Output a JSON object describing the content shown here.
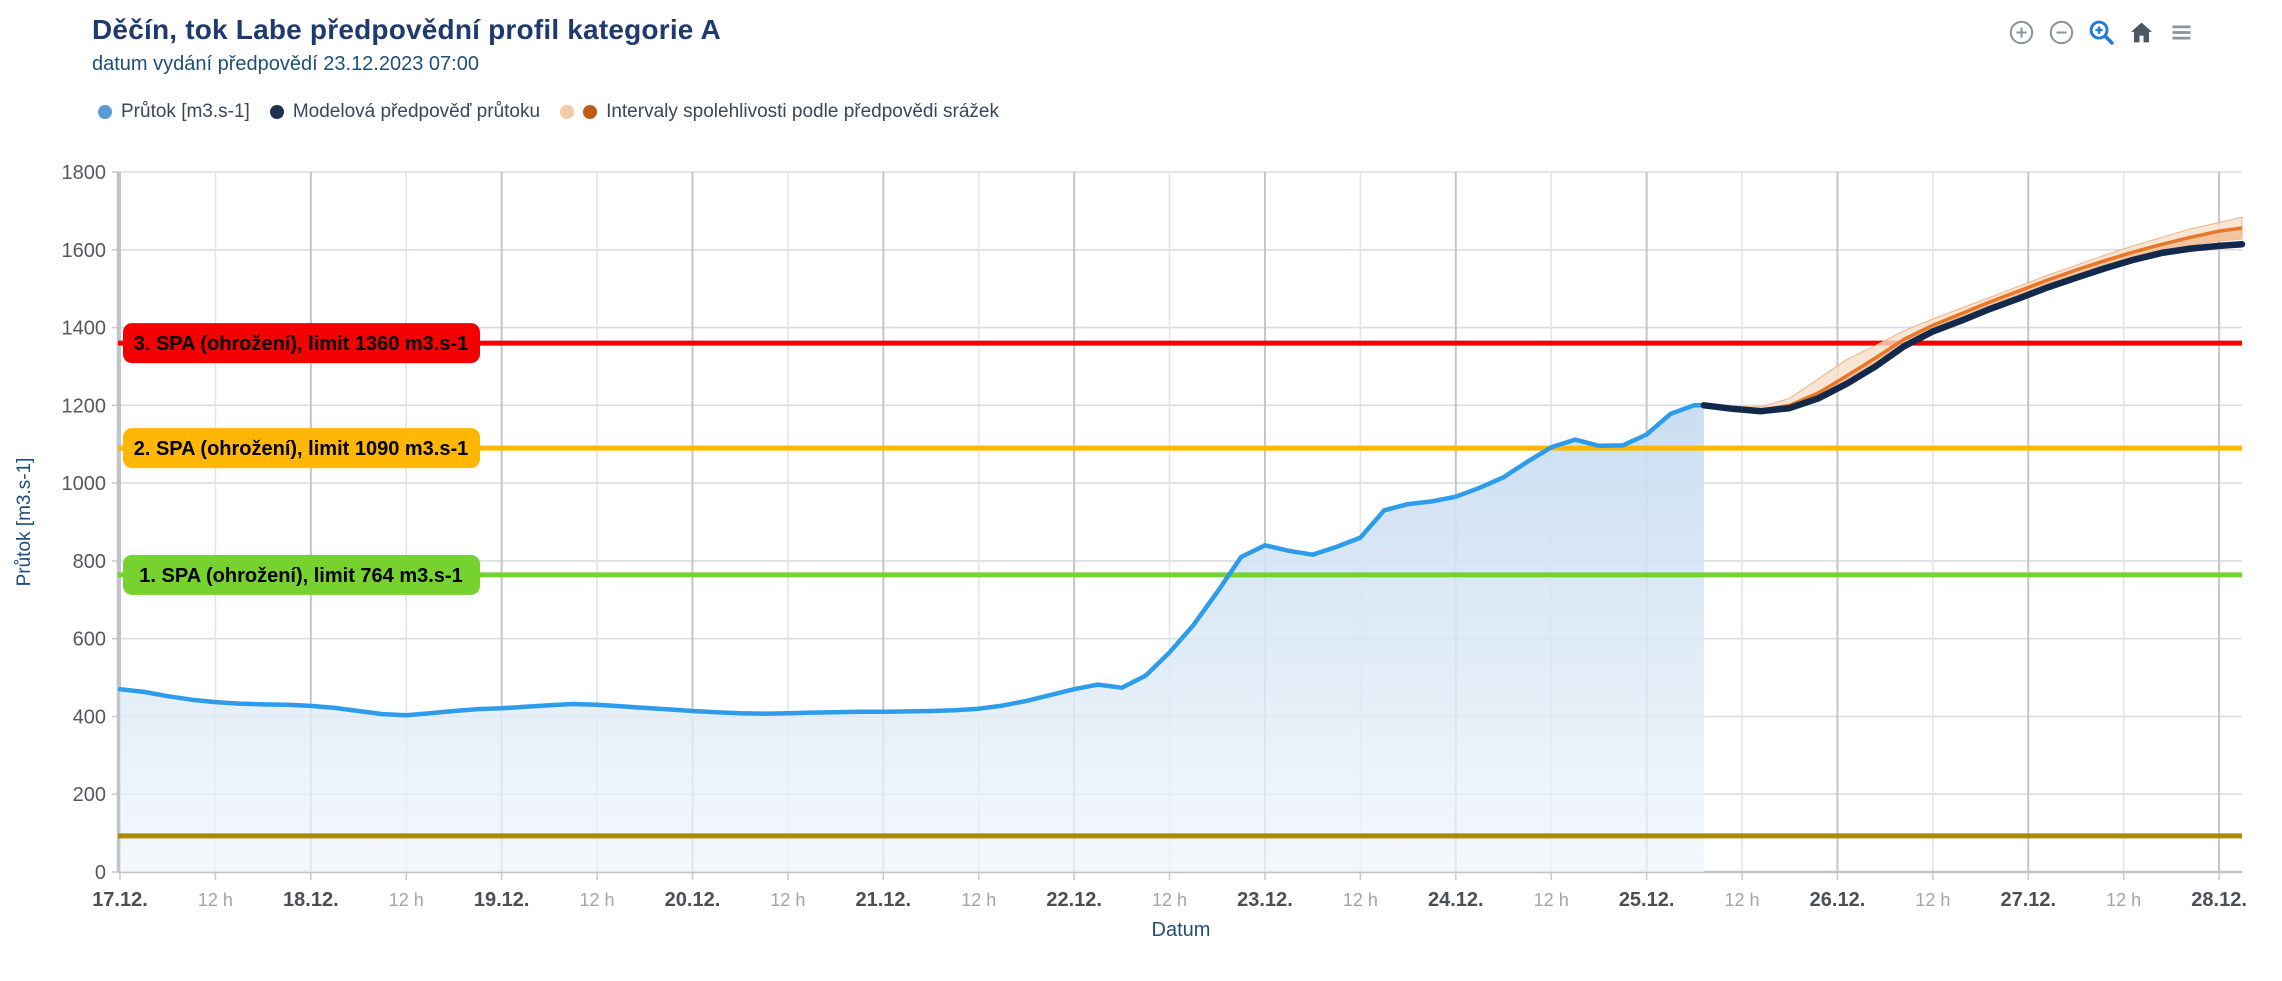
{
  "header": {
    "title": "Děčín, tok Labe předpovědní profil kategorie A",
    "subtitle": "datum vydání předpovědí 23.12.2023 07:00"
  },
  "toolbar": {
    "icons": [
      {
        "name": "zoom-in",
        "color": "#8A939E",
        "active": false
      },
      {
        "name": "zoom-out",
        "color": "#8A939E",
        "active": false
      },
      {
        "name": "zoom-window",
        "color": "#1E7BD7",
        "active": true
      },
      {
        "name": "home",
        "color": "#4D5763",
        "active": false
      },
      {
        "name": "menu",
        "color": "#8A939E",
        "active": false
      }
    ]
  },
  "legend": {
    "items": [
      {
        "label": "Průtok [m3.s-1]",
        "dots": [
          "#5B9BD5"
        ]
      },
      {
        "label": "Modelová předpověď průtoku",
        "dots": [
          "#1F3050"
        ]
      },
      {
        "label": "Intervaly spolehlivosti podle předpovědi srážek",
        "dots": [
          "#F5C9A4",
          "#C05A15"
        ]
      }
    ]
  },
  "chart_data": {
    "type": "line",
    "title": "Děčín, tok Labe předpovědní profil kategorie A",
    "xlabel": "Datum",
    "ylabel": "Průtok [m3.s-1]",
    "ylim": [
      0,
      1800
    ],
    "ytick_step": 200,
    "xlim": [
      0,
      11.12
    ],
    "x_unit": "days since 17.12. 00:00",
    "grid": true,
    "x_ticks": [
      {
        "d": 0,
        "label": "17.12.",
        "major": true
      },
      {
        "d": 0.5,
        "label": "12 h",
        "major": false
      },
      {
        "d": 1,
        "label": "18.12.",
        "major": true
      },
      {
        "d": 1.5,
        "label": "12 h",
        "major": false
      },
      {
        "d": 2,
        "label": "19.12.",
        "major": true
      },
      {
        "d": 2.5,
        "label": "12 h",
        "major": false
      },
      {
        "d": 3,
        "label": "20.12.",
        "major": true
      },
      {
        "d": 3.5,
        "label": "12 h",
        "major": false
      },
      {
        "d": 4,
        "label": "21.12.",
        "major": true
      },
      {
        "d": 4.5,
        "label": "12 h",
        "major": false
      },
      {
        "d": 5,
        "label": "22.12.",
        "major": true
      },
      {
        "d": 5.5,
        "label": "12 h",
        "major": false
      },
      {
        "d": 6,
        "label": "23.12.",
        "major": true
      },
      {
        "d": 6.5,
        "label": "12 h",
        "major": false
      },
      {
        "d": 7,
        "label": "24.12.",
        "major": true
      },
      {
        "d": 7.5,
        "label": "12 h",
        "major": false
      },
      {
        "d": 8,
        "label": "25.12.",
        "major": true
      },
      {
        "d": 8.5,
        "label": "12 h",
        "major": false
      },
      {
        "d": 9,
        "label": "26.12.",
        "major": true
      },
      {
        "d": 9.5,
        "label": "12 h",
        "major": false
      },
      {
        "d": 10,
        "label": "27.12.",
        "major": true
      },
      {
        "d": 10.5,
        "label": "12 h",
        "major": false
      },
      {
        "d": 11,
        "label": "28.12.",
        "major": true
      }
    ],
    "thresholds": [
      {
        "label": "3. SPA (ohrožení), limit 1360 m3.s-1",
        "value": 1360,
        "color": "#F40000",
        "boxed": true
      },
      {
        "label": "2. SPA (ohrožení), limit 1090 m3.s-1",
        "value": 1090,
        "color": "#FFB704",
        "boxed": true
      },
      {
        "label": "1. SPA (ohrožení), limit 764 m3.s-1",
        "value": 764,
        "color": "#76D22E",
        "boxed": true
      },
      {
        "label": "",
        "value": 93,
        "color": "#A88B00",
        "boxed": false
      }
    ],
    "series": [
      {
        "name": "Průtok [m3.s-1]",
        "role": "observed",
        "color": "#2D9CEA",
        "area": true,
        "d": [
          0,
          0.125,
          0.25,
          0.375,
          0.5,
          0.625,
          0.75,
          0.875,
          1,
          1.125,
          1.25,
          1.375,
          1.5,
          1.625,
          1.75,
          1.875,
          2,
          2.125,
          2.25,
          2.375,
          2.5,
          2.625,
          2.75,
          2.875,
          3,
          3.125,
          3.25,
          3.375,
          3.5,
          3.625,
          3.75,
          3.875,
          4,
          4.125,
          4.25,
          4.375,
          4.5,
          4.625,
          4.75,
          4.875,
          5,
          5.125,
          5.25,
          5.375,
          5.5,
          5.625,
          5.75,
          5.875,
          6,
          6.125,
          6.25,
          6.375,
          6.5,
          6.625,
          6.75,
          6.875,
          7,
          7.125,
          7.25,
          7.375,
          7.5,
          7.625,
          7.75,
          7.875,
          8,
          8.125,
          8.25,
          8.3
        ],
        "v": [
          470,
          463,
          452,
          443,
          437,
          433,
          431,
          430,
          427,
          422,
          414,
          406,
          403,
          408,
          414,
          419,
          421,
          425,
          429,
          432,
          430,
          426,
          422,
          418,
          414,
          411,
          408,
          407,
          408,
          410,
          411,
          412,
          412,
          413,
          414,
          416,
          420,
          428,
          440,
          455,
          470,
          482,
          474,
          505,
          565,
          635,
          720,
          810,
          840,
          826,
          816,
          836,
          860,
          930,
          946,
          953,
          965,
          988,
          1015,
          1055,
          1092,
          1112,
          1096,
          1097,
          1125,
          1178,
          1200,
          1200
        ]
      },
      {
        "name": "Modelová předpověď průtoku",
        "role": "forecast",
        "color": "#13294B",
        "area": false,
        "d": [
          8.3,
          8.45,
          8.6,
          8.75,
          8.9,
          9.05,
          9.2,
          9.35,
          9.5,
          9.65,
          9.8,
          9.95,
          10.1,
          10.25,
          10.4,
          10.55,
          10.7,
          10.85,
          11.0,
          11.12
        ],
        "v": [
          1200,
          1191,
          1185,
          1193,
          1218,
          1256,
          1300,
          1352,
          1390,
          1418,
          1448,
          1475,
          1503,
          1528,
          1552,
          1574,
          1592,
          1603,
          1610,
          1614
        ]
      },
      {
        "name": "Intervaly spolehlivosti podle předpovědi srážek",
        "role": "confidence-median",
        "color": "#E8772A",
        "area": false,
        "d": [
          8.3,
          8.45,
          8.6,
          8.75,
          8.9,
          9.05,
          9.2,
          9.35,
          9.5,
          9.65,
          9.8,
          9.95,
          10.1,
          10.25,
          10.4,
          10.55,
          10.7,
          10.85,
          11.0,
          11.12
        ],
        "v": [
          1200,
          1192,
          1188,
          1200,
          1232,
          1276,
          1322,
          1370,
          1406,
          1436,
          1466,
          1494,
          1522,
          1548,
          1572,
          1594,
          1614,
          1632,
          1648,
          1656
        ]
      }
    ],
    "band": {
      "name": "Intervaly spolehlivosti podle předpovědi srážek",
      "color_outer": "#F8DFC8",
      "color_inner": "#F2BE94",
      "d": [
        8.3,
        8.45,
        8.6,
        8.75,
        8.9,
        9.05,
        9.2,
        9.35,
        9.5,
        9.65,
        9.8,
        9.95,
        10.1,
        10.25,
        10.4,
        10.55,
        10.7,
        10.85,
        11.0,
        11.12
      ],
      "upper": [
        1203,
        1197,
        1196,
        1218,
        1268,
        1318,
        1354,
        1392,
        1422,
        1450,
        1478,
        1506,
        1534,
        1560,
        1586,
        1610,
        1632,
        1654,
        1670,
        1684
      ],
      "lower": [
        1198,
        1189,
        1183,
        1191,
        1215,
        1252,
        1296,
        1348,
        1386,
        1414,
        1444,
        1471,
        1499,
        1524,
        1549,
        1572,
        1594,
        1612,
        1622,
        1628
      ]
    },
    "legend_position": "top-left"
  }
}
